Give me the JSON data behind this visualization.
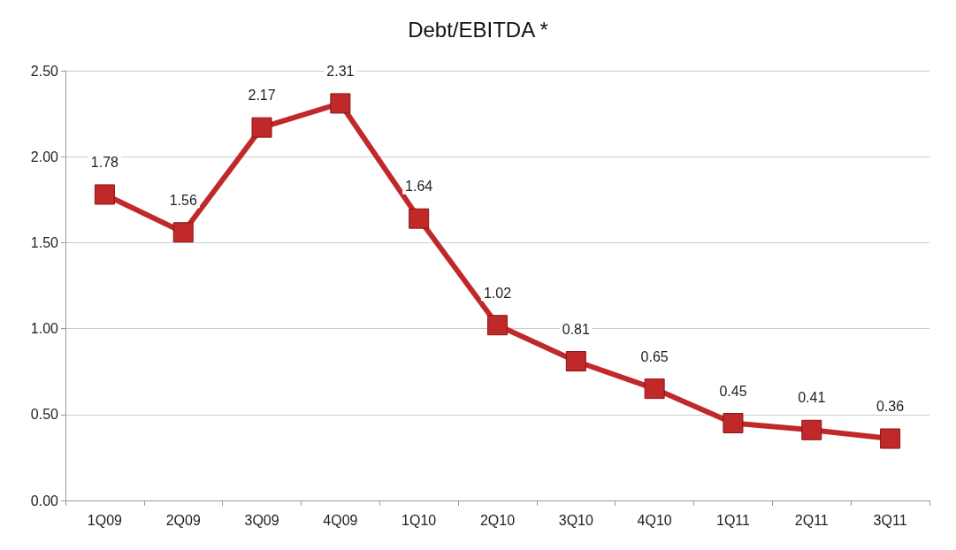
{
  "chart_data": {
    "type": "line",
    "title": "Debt/EBITDA *",
    "categories": [
      "1Q09",
      "2Q09",
      "3Q09",
      "4Q09",
      "1Q10",
      "2Q10",
      "3Q10",
      "4Q10",
      "1Q11",
      "2Q11",
      "3Q11"
    ],
    "values": [
      1.78,
      1.56,
      2.17,
      2.31,
      1.64,
      1.02,
      0.81,
      0.65,
      0.45,
      0.41,
      0.36
    ],
    "color": "#c0282a",
    "marker": "square",
    "line_style": "solid",
    "data_labels": true,
    "grid": "y",
    "ylim": [
      0,
      2.5
    ],
    "yticks": [
      {
        "value": 0,
        "label": "0.00"
      },
      {
        "value": 0.5,
        "label": "0.50"
      },
      {
        "value": 1,
        "label": "1.00"
      },
      {
        "value": 1.5,
        "label": "1.50"
      },
      {
        "value": 2,
        "label": "2.00"
      },
      {
        "value": 2.5,
        "label": "2.50"
      }
    ]
  }
}
